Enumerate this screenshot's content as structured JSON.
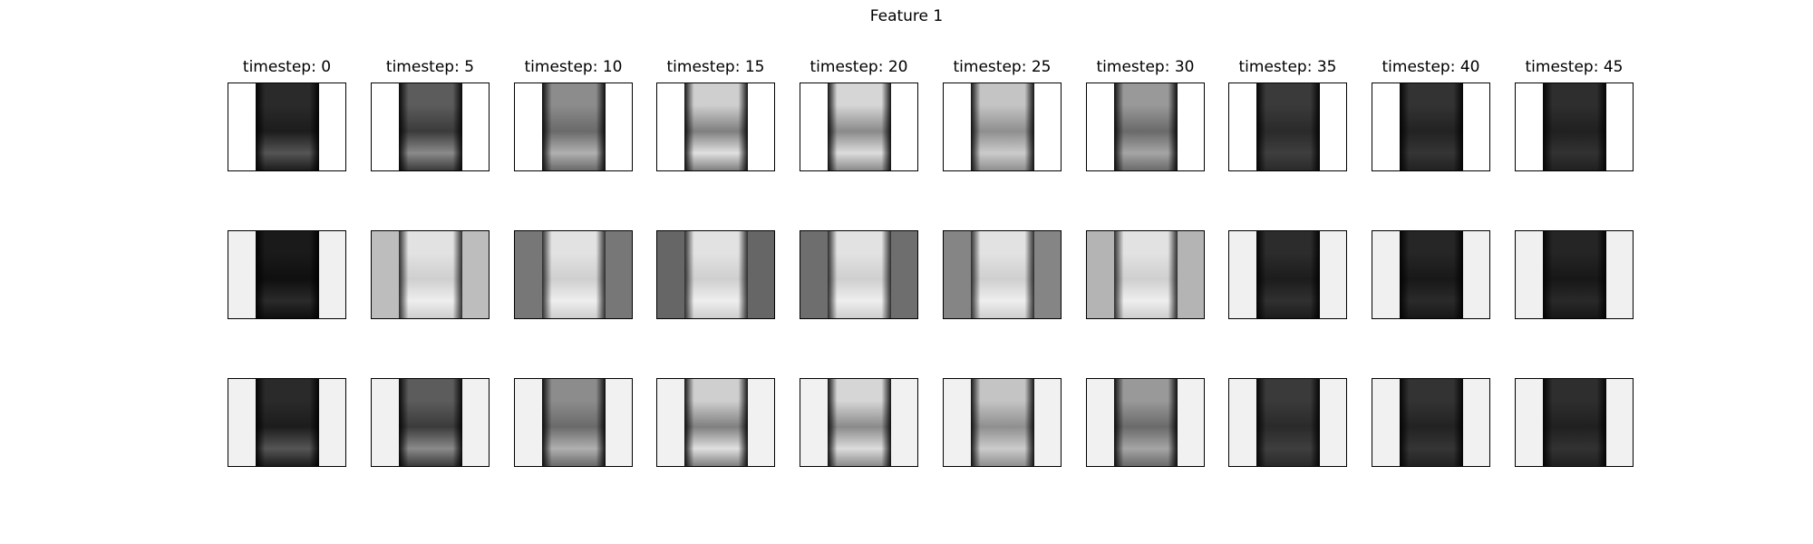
{
  "figure": {
    "title": "Feature 1",
    "column_titles": [
      "timestep: 0",
      "timestep: 5",
      "timestep: 10",
      "timestep: 15",
      "timestep: 20",
      "timestep: 25",
      "timestep: 30",
      "timestep: 35",
      "timestep: 40",
      "timestep: 45"
    ],
    "rows": [
      {
        "row": "1",
        "panels": [
          {
            "background": "#ffffff",
            "object_top": "#2a2a2a",
            "object_mid": "#1c1c1c",
            "object_bottom": "#555555",
            "edge": "#000000"
          },
          {
            "background": "#ffffff",
            "object_top": "#5c5c5c",
            "object_mid": "#3b3b3b",
            "object_bottom": "#8a8a8a",
            "edge": "#000000"
          },
          {
            "background": "#ffffff",
            "object_top": "#8c8c8c",
            "object_mid": "#6a6a6a",
            "object_bottom": "#b0b0b0",
            "edge": "#000000"
          },
          {
            "background": "#ffffff",
            "object_top": "#cfcfcf",
            "object_mid": "#7f7f7f",
            "object_bottom": "#e0e0e0",
            "edge": "#000000"
          },
          {
            "background": "#ffffff",
            "object_top": "#d6d6d6",
            "object_mid": "#8a8a8a",
            "object_bottom": "#dcdcdc",
            "edge": "#000000"
          },
          {
            "background": "#ffffff",
            "object_top": "#c4c4c4",
            "object_mid": "#8f8f8f",
            "object_bottom": "#cbcbcb",
            "edge": "#000000"
          },
          {
            "background": "#ffffff",
            "object_top": "#999999",
            "object_mid": "#6a6a6a",
            "object_bottom": "#a5a5a5",
            "edge": "#000000"
          },
          {
            "background": "#ffffff",
            "object_top": "#3a3a3a",
            "object_mid": "#2a2a2a",
            "object_bottom": "#3e3e3e",
            "edge": "#000000"
          },
          {
            "background": "#ffffff",
            "object_top": "#333333",
            "object_mid": "#222222",
            "object_bottom": "#353535",
            "edge": "#000000"
          },
          {
            "background": "#ffffff",
            "object_top": "#2e2e2e",
            "object_mid": "#202020",
            "object_bottom": "#323232",
            "edge": "#000000"
          }
        ]
      },
      {
        "row": "2",
        "panels": [
          {
            "background": "#f0f0f0",
            "object_top": "#1a1a1a",
            "object_mid": "#0f0f0f",
            "object_bottom": "#2a2a2a",
            "edge": "#000000"
          },
          {
            "background": "#bdbdbd",
            "object_top": "#e2e2e2",
            "object_mid": "#cfcfcf",
            "object_bottom": "#eeeeee",
            "edge": "#1a1a1a"
          },
          {
            "background": "#777777",
            "object_top": "#e2e2e2",
            "object_mid": "#cfcfcf",
            "object_bottom": "#eeeeee",
            "edge": "#1a1a1a"
          },
          {
            "background": "#666666",
            "object_top": "#e2e2e2",
            "object_mid": "#cfcfcf",
            "object_bottom": "#eeeeee",
            "edge": "#1a1a1a"
          },
          {
            "background": "#6e6e6e",
            "object_top": "#e2e2e2",
            "object_mid": "#cfcfcf",
            "object_bottom": "#eeeeee",
            "edge": "#1a1a1a"
          },
          {
            "background": "#858585",
            "object_top": "#e2e2e2",
            "object_mid": "#cfcfcf",
            "object_bottom": "#eeeeee",
            "edge": "#1a1a1a"
          },
          {
            "background": "#b4b4b4",
            "object_top": "#e2e2e2",
            "object_mid": "#cfcfcf",
            "object_bottom": "#eeeeee",
            "edge": "#1a1a1a"
          },
          {
            "background": "#f0f0f0",
            "object_top": "#2c2c2c",
            "object_mid": "#1c1c1c",
            "object_bottom": "#303030",
            "edge": "#000000"
          },
          {
            "background": "#f0f0f0",
            "object_top": "#262626",
            "object_mid": "#181818",
            "object_bottom": "#2a2a2a",
            "edge": "#000000"
          },
          {
            "background": "#f0f0f0",
            "object_top": "#252525",
            "object_mid": "#171717",
            "object_bottom": "#292929",
            "edge": "#000000"
          }
        ]
      },
      {
        "row": "3",
        "panels": [
          {
            "background": "#f1f1f1",
            "object_top": "#2a2a2a",
            "object_mid": "#1c1c1c",
            "object_bottom": "#555555",
            "edge": "#000000"
          },
          {
            "background": "#f1f1f1",
            "object_top": "#5c5c5c",
            "object_mid": "#3b3b3b",
            "object_bottom": "#8a8a8a",
            "edge": "#000000"
          },
          {
            "background": "#f1f1f1",
            "object_top": "#8c8c8c",
            "object_mid": "#6a6a6a",
            "object_bottom": "#b0b0b0",
            "edge": "#000000"
          },
          {
            "background": "#f1f1f1",
            "object_top": "#cfcfcf",
            "object_mid": "#7f7f7f",
            "object_bottom": "#e0e0e0",
            "edge": "#000000"
          },
          {
            "background": "#f1f1f1",
            "object_top": "#d6d6d6",
            "object_mid": "#8a8a8a",
            "object_bottom": "#dcdcdc",
            "edge": "#000000"
          },
          {
            "background": "#f1f1f1",
            "object_top": "#c4c4c4",
            "object_mid": "#8f8f8f",
            "object_bottom": "#cbcbcb",
            "edge": "#000000"
          },
          {
            "background": "#f1f1f1",
            "object_top": "#999999",
            "object_mid": "#6a6a6a",
            "object_bottom": "#a5a5a5",
            "edge": "#000000"
          },
          {
            "background": "#f1f1f1",
            "object_top": "#3a3a3a",
            "object_mid": "#2a2a2a",
            "object_bottom": "#3e3e3e",
            "edge": "#000000"
          },
          {
            "background": "#f1f1f1",
            "object_top": "#333333",
            "object_mid": "#222222",
            "object_bottom": "#353535",
            "edge": "#000000"
          },
          {
            "background": "#f1f1f1",
            "object_top": "#2e2e2e",
            "object_mid": "#202020",
            "object_bottom": "#323232",
            "edge": "#000000"
          }
        ]
      }
    ]
  }
}
